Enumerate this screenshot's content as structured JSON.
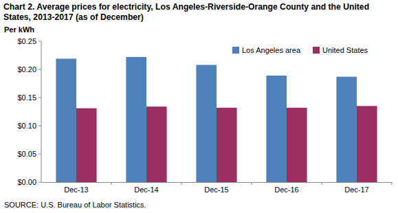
{
  "chart_data": {
    "type": "bar",
    "title": "Chart 2. Average prices for electricity, Los Angeles-Riverside-Orange County and the United States, 2013-2017 (as of December)",
    "y_label": "Per kWh",
    "source": "SOURCE: U.S. Bureau of Labor Statistics.",
    "categories": [
      "Dec-13",
      "Dec-14",
      "Dec-15",
      "Dec-16",
      "Dec-17"
    ],
    "series": [
      {
        "name": "Los Angeles area",
        "color": "#4f81bd",
        "values": [
          0.219,
          0.222,
          0.208,
          0.189,
          0.187
        ]
      },
      {
        "name": "United States",
        "color": "#9b2f60",
        "values": [
          0.131,
          0.134,
          0.132,
          0.132,
          0.135
        ]
      }
    ],
    "ylim": [
      0,
      0.25
    ],
    "yticks": [
      {
        "value": 0,
        "label": "$0.00"
      },
      {
        "value": 0.05,
        "label": "$0.05"
      },
      {
        "value": 0.1,
        "label": "$0.10"
      },
      {
        "value": 0.15,
        "label": "$0.15"
      },
      {
        "value": 0.2,
        "label": "$0.20"
      },
      {
        "value": 0.25,
        "label": "$0.25"
      }
    ],
    "grid": false,
    "legend": "top-right"
  }
}
